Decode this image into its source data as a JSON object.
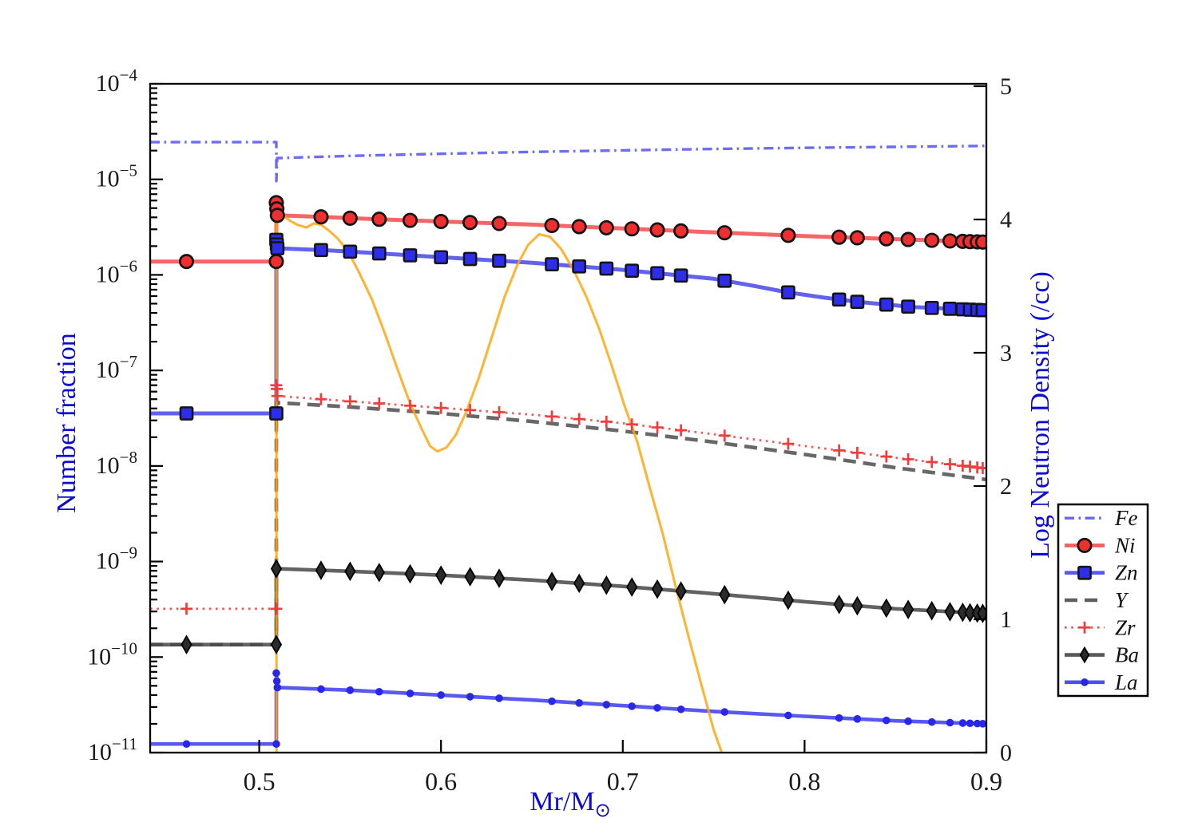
{
  "chart_data": {
    "type": "line",
    "title": "",
    "grid": false,
    "legend_position": "outside-right",
    "x_axis": {
      "label": "Mr/M",
      "label_sub": "⊙",
      "min": 0.44,
      "max": 0.9,
      "ticks": [
        0.5,
        0.6,
        0.7,
        0.8,
        0.9
      ],
      "tick_labels": [
        "0.5",
        "0.6",
        "0.7",
        "0.8",
        "0.9"
      ]
    },
    "y_left": {
      "label": "Number fraction",
      "scale": "log",
      "exp_max": -4,
      "exp_min": -11,
      "tick_exponents": [
        -4,
        -5,
        -6,
        -7,
        -8,
        -9,
        -10,
        -11
      ],
      "tick_base": "10"
    },
    "y_right": {
      "label": "Log Neutron Density (/cc)",
      "scale": "linear",
      "min": 0,
      "max": 5,
      "ticks": [
        0,
        1,
        2,
        3,
        4,
        5
      ],
      "tick_labels": [
        "0",
        "1",
        "2",
        "3",
        "4",
        "5"
      ]
    },
    "jump_x": 0.5094,
    "marker_grid": [
      0.46,
      0.534,
      0.55,
      0.566,
      0.583,
      0.6,
      0.616,
      0.632,
      0.661,
      0.676,
      0.691,
      0.705,
      0.719,
      0.732,
      0.756,
      0.791,
      0.819,
      0.829,
      0.845,
      0.857,
      0.87,
      0.88,
      0.887,
      0.891,
      0.895,
      0.898
    ],
    "series": [
      {
        "name": "Fe",
        "axis": "left",
        "color": "#5353f2",
        "line": "dashdot",
        "width": 3.4,
        "marker": null,
        "in_legend": true,
        "points": [
          [
            0.44,
            2.45e-05
          ],
          [
            0.5094,
            2.45e-05
          ],
          [
            0.5094,
            9.6e-06
          ],
          [
            0.5099,
            1.67e-05
          ],
          [
            0.52,
            1.69e-05
          ],
          [
            0.55,
            1.76e-05
          ],
          [
            0.6,
            1.85e-05
          ],
          [
            0.65,
            1.94e-05
          ],
          [
            0.7,
            2.01e-05
          ],
          [
            0.75,
            2.08e-05
          ],
          [
            0.8,
            2.14e-05
          ],
          [
            0.85,
            2.19e-05
          ],
          [
            0.9,
            2.24e-05
          ]
        ]
      },
      {
        "name": "Ni",
        "axis": "left",
        "color": "#f54b4b",
        "line": "solid",
        "width": 5,
        "marker": {
          "type": "circle",
          "fill": "#ef2f2f",
          "edge": "#141414",
          "size": 8.2
        },
        "in_legend": true,
        "points": [
          [
            0.44,
            1.38e-06
          ],
          [
            0.5094,
            1.38e-06
          ],
          [
            0.5094,
            5.7e-06
          ],
          [
            0.51,
            4.2e-06
          ],
          [
            0.534,
            4.05e-06
          ],
          [
            0.55,
            3.92e-06
          ],
          [
            0.6,
            3.62e-06
          ],
          [
            0.65,
            3.36e-06
          ],
          [
            0.7,
            3.06e-06
          ],
          [
            0.75,
            2.79e-06
          ],
          [
            0.8,
            2.55e-06
          ],
          [
            0.85,
            2.37e-06
          ],
          [
            0.9,
            2.2e-06
          ]
        ],
        "use_marker_grid": true,
        "extra_markers": [
          [
            0.5094,
            1.38e-06
          ],
          [
            0.5094,
            5.7e-06
          ],
          [
            0.5097,
            4.9e-06
          ],
          [
            0.51,
            4.2e-06
          ]
        ]
      },
      {
        "name": "Zn",
        "axis": "left",
        "color": "#4646ee",
        "line": "solid",
        "width": 5,
        "marker": {
          "type": "square",
          "fill": "#2d2deb",
          "edge": "#141414",
          "size": 7.6
        },
        "in_legend": true,
        "points": [
          [
            0.44,
            3.55e-08
          ],
          [
            0.5094,
            3.55e-08
          ],
          [
            0.5094,
            2.33e-06
          ],
          [
            0.51,
            1.9e-06
          ],
          [
            0.534,
            1.82e-06
          ],
          [
            0.55,
            1.75e-06
          ],
          [
            0.6,
            1.53e-06
          ],
          [
            0.65,
            1.34e-06
          ],
          [
            0.7,
            1.13e-06
          ],
          [
            0.75,
            9.1e-07
          ],
          [
            0.77,
            7.8e-07
          ],
          [
            0.79,
            6.6e-07
          ],
          [
            0.81,
            5.8e-07
          ],
          [
            0.83,
            5.2e-07
          ],
          [
            0.86,
            4.6e-07
          ],
          [
            0.9,
            4.25e-07
          ]
        ],
        "use_marker_grid": true,
        "extra_markers": [
          [
            0.5094,
            3.55e-08
          ],
          [
            0.5094,
            2.33e-06
          ],
          [
            0.5097,
            2.08e-06
          ],
          [
            0.51,
            1.9e-06
          ]
        ]
      },
      {
        "name": "Y",
        "axis": "left",
        "color": "#4d4d4d",
        "line": "dash",
        "width": 4.6,
        "marker": null,
        "in_legend": true,
        "points": [
          [
            0.44,
            1.35e-10
          ],
          [
            0.5094,
            1.35e-10
          ],
          [
            0.5094,
            4.6e-08
          ],
          [
            0.55,
            4.15e-08
          ],
          [
            0.6,
            3.55e-08
          ],
          [
            0.65,
            2.92e-08
          ],
          [
            0.7,
            2.32e-08
          ],
          [
            0.75,
            1.78e-08
          ],
          [
            0.8,
            1.32e-08
          ],
          [
            0.85,
            9.6e-09
          ],
          [
            0.9,
            7.2e-09
          ]
        ]
      },
      {
        "name": "Zr",
        "axis": "left",
        "color": "#f23c3c",
        "line": "dot",
        "width": 2.8,
        "marker": {
          "type": "plus",
          "fill": "#f23c3c",
          "edge": "#f23c3c",
          "size": 7.5
        },
        "in_legend": true,
        "points": [
          [
            0.44,
            3.2e-10
          ],
          [
            0.5094,
            3.2e-10
          ],
          [
            0.5094,
            7e-08
          ],
          [
            0.51,
            5.4e-08
          ],
          [
            0.55,
            4.75e-08
          ],
          [
            0.6,
            4.05e-08
          ],
          [
            0.65,
            3.45e-08
          ],
          [
            0.7,
            2.8e-08
          ],
          [
            0.75,
            2.15e-08
          ],
          [
            0.8,
            1.62e-08
          ],
          [
            0.85,
            1.22e-08
          ],
          [
            0.9,
            9.4e-09
          ]
        ],
        "use_marker_grid": true,
        "extra_markers": [
          [
            0.5094,
            3.2e-10
          ],
          [
            0.5094,
            7e-08
          ],
          [
            0.5097,
            6.4e-08
          ],
          [
            0.51,
            5.4e-08
          ]
        ]
      },
      {
        "name": "Ba",
        "axis": "left",
        "color": "#474747",
        "line": "solid",
        "width": 4.6,
        "marker": {
          "type": "diamond",
          "fill": "#2b2b2b",
          "edge": "#000000",
          "size": 10.5
        },
        "in_legend": true,
        "points": [
          [
            0.44,
            1.35e-10
          ],
          [
            0.5094,
            1.35e-10
          ],
          [
            0.5094,
            8.4e-10
          ],
          [
            0.55,
            7.9e-10
          ],
          [
            0.6,
            7.2e-10
          ],
          [
            0.65,
            6.4e-10
          ],
          [
            0.7,
            5.5e-10
          ],
          [
            0.75,
            4.6e-10
          ],
          [
            0.8,
            3.8e-10
          ],
          [
            0.85,
            3.2e-10
          ],
          [
            0.9,
            2.85e-10
          ]
        ],
        "use_marker_grid": true,
        "extra_markers": [
          [
            0.5094,
            1.35e-10
          ],
          [
            0.5094,
            8.4e-10
          ]
        ]
      },
      {
        "name": "La",
        "axis": "left",
        "color": "#3c3cf0",
        "line": "solid",
        "width": 4.6,
        "marker": {
          "type": "dot",
          "fill": "#2828e6",
          "edge": "#2828e6",
          "size": 4.8
        },
        "in_legend": true,
        "points": [
          [
            0.44,
            1.23e-11
          ],
          [
            0.5094,
            1.23e-11
          ],
          [
            0.5094,
            6.8e-11
          ],
          [
            0.51,
            4.8e-11
          ],
          [
            0.55,
            4.5e-11
          ],
          [
            0.6,
            4e-11
          ],
          [
            0.65,
            3.55e-11
          ],
          [
            0.7,
            3.1e-11
          ],
          [
            0.75,
            2.7e-11
          ],
          [
            0.8,
            2.4e-11
          ],
          [
            0.85,
            2.15e-11
          ],
          [
            0.9,
            2e-11
          ]
        ],
        "use_marker_grid": true,
        "extra_markers": [
          [
            0.5094,
            1.23e-11
          ],
          [
            0.5094,
            6.8e-11
          ],
          [
            0.5097,
            5.6e-11
          ],
          [
            0.51,
            4.8e-11
          ]
        ]
      },
      {
        "name": "neutron-density",
        "axis": "right",
        "color": "#ffa60d",
        "line": "solid",
        "width": 3,
        "marker": null,
        "in_legend": false,
        "points": [
          [
            0.5095,
            0
          ],
          [
            0.5095,
            4.06
          ],
          [
            0.513,
            4.03
          ],
          [
            0.517,
            3.99
          ],
          [
            0.521,
            3.96
          ],
          [
            0.526,
            3.94
          ],
          [
            0.53,
            3.97
          ],
          [
            0.534,
            3.96
          ],
          [
            0.538,
            3.92
          ],
          [
            0.543,
            3.86
          ],
          [
            0.549,
            3.76
          ],
          [
            0.555,
            3.6
          ],
          [
            0.562,
            3.4
          ],
          [
            0.569,
            3.15
          ],
          [
            0.576,
            2.88
          ],
          [
            0.583,
            2.62
          ],
          [
            0.589,
            2.44
          ],
          [
            0.594,
            2.3
          ],
          [
            0.598,
            2.26
          ],
          [
            0.603,
            2.29
          ],
          [
            0.608,
            2.38
          ],
          [
            0.614,
            2.56
          ],
          [
            0.621,
            2.82
          ],
          [
            0.628,
            3.12
          ],
          [
            0.635,
            3.42
          ],
          [
            0.642,
            3.66
          ],
          [
            0.648,
            3.81
          ],
          [
            0.654,
            3.89
          ],
          [
            0.66,
            3.87
          ],
          [
            0.666,
            3.78
          ],
          [
            0.673,
            3.62
          ],
          [
            0.68,
            3.42
          ],
          [
            0.687,
            3.18
          ],
          [
            0.694,
            2.9
          ],
          [
            0.701,
            2.6
          ],
          [
            0.708,
            2.33
          ],
          [
            0.715,
            1.98
          ],
          [
            0.722,
            1.64
          ],
          [
            0.729,
            1.25
          ],
          [
            0.736,
            0.88
          ],
          [
            0.743,
            0.52
          ],
          [
            0.75,
            0.17
          ],
          [
            0.7545,
            0
          ]
        ]
      }
    ],
    "legend": {
      "entries": [
        "Fe",
        "Ni",
        "Zn",
        "Y",
        "Zr",
        "Ba",
        "La"
      ]
    }
  }
}
